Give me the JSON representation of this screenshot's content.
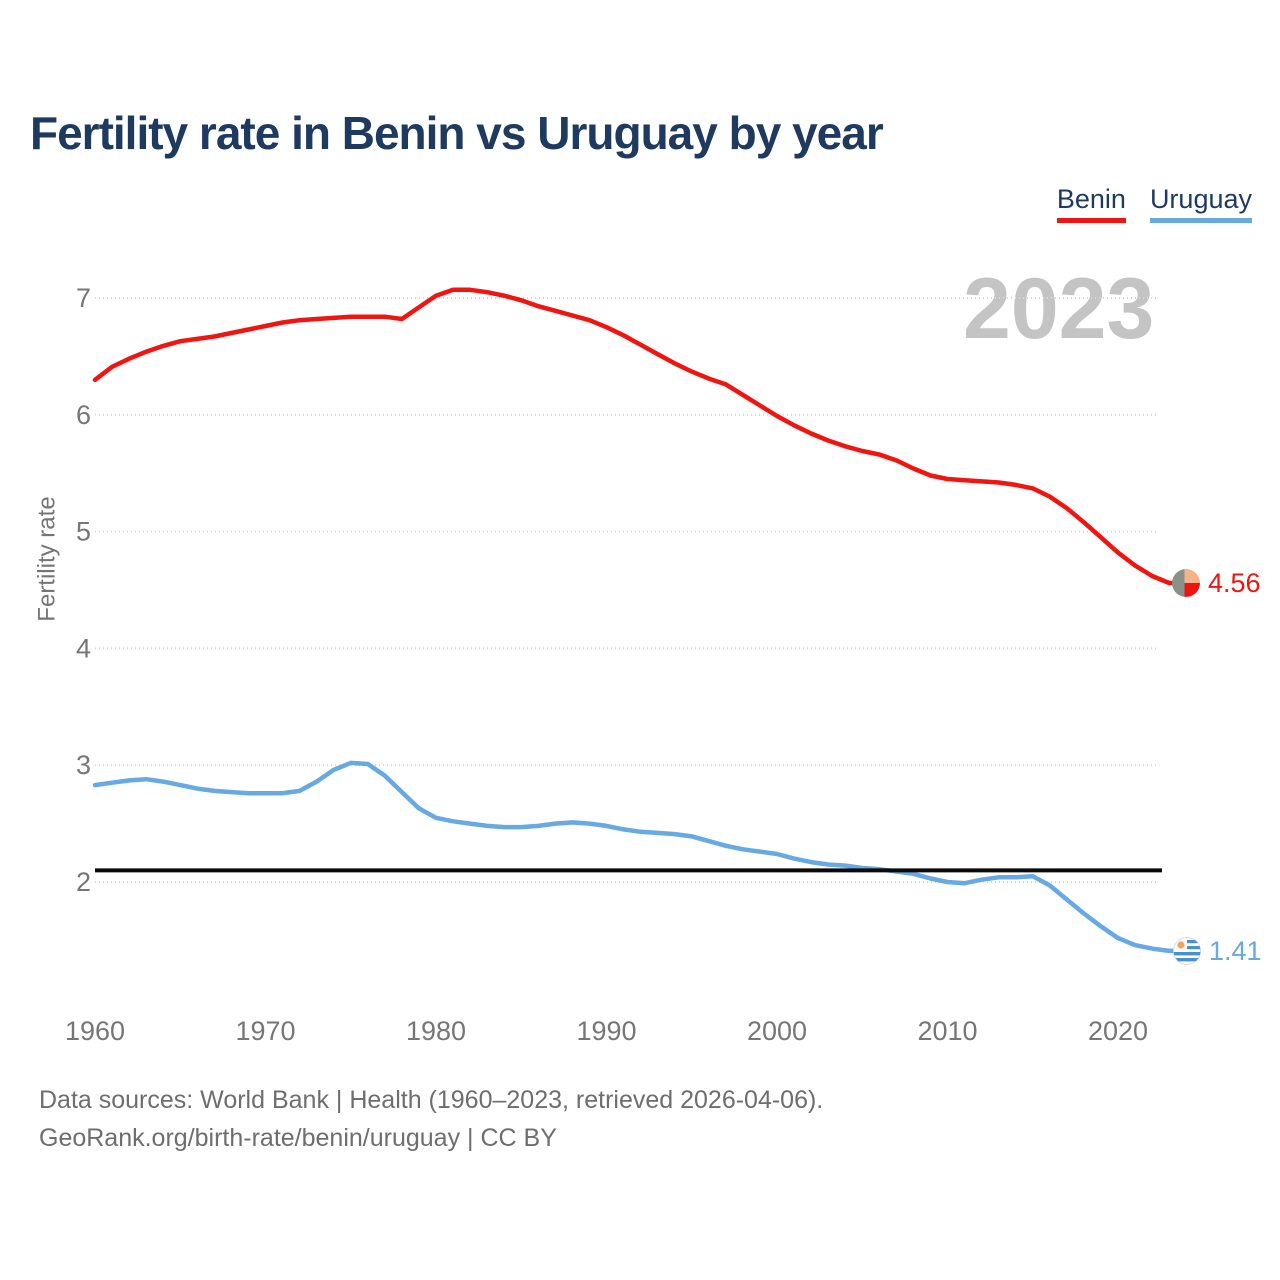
{
  "title": "Fertility rate in Benin vs Uruguay by year",
  "watermark_year": "2023",
  "legend": {
    "items": [
      {
        "label": "Benin",
        "color": "#f01511"
      },
      {
        "label": "Uruguay",
        "color": "#66a9e3"
      }
    ]
  },
  "end_labels": [
    {
      "series": "Benin",
      "value": "4.56",
      "icon": "benin-flag-icon",
      "color": "#f01511"
    },
    {
      "series": "Uruguay",
      "value": "1.41",
      "icon": "uruguay-flag-icon",
      "color": "#66a9e3"
    }
  ],
  "footer": {
    "line1": "Data sources: World Bank | Health (1960–2023, retrieved 2026-04-06).",
    "line2": "GeoRank.org/birth-rate/benin/uruguay | CC BY"
  },
  "chart_data": {
    "type": "line",
    "title": "Fertility rate in Benin vs Uruguay by year",
    "xlabel": "",
    "ylabel": "Fertility rate",
    "x_ticks": [
      1960,
      1970,
      1980,
      1990,
      2000,
      2010,
      2020
    ],
    "y_ticks": [
      2,
      3,
      4,
      5,
      6,
      7
    ],
    "xlim": [
      1960,
      2023
    ],
    "ylim": [
      1.3,
      7.15
    ],
    "grid": "horizontal-dotted",
    "legend_position": "top-right",
    "reference_line": {
      "value": 2.1,
      "color": "#0a0a0a",
      "meaning": "replacement level"
    },
    "x": [
      1960,
      1961,
      1962,
      1963,
      1964,
      1965,
      1966,
      1967,
      1968,
      1969,
      1970,
      1971,
      1972,
      1973,
      1974,
      1975,
      1976,
      1977,
      1978,
      1979,
      1980,
      1981,
      1982,
      1983,
      1984,
      1985,
      1986,
      1987,
      1988,
      1989,
      1990,
      1991,
      1992,
      1993,
      1994,
      1995,
      1996,
      1997,
      1998,
      1999,
      2000,
      2001,
      2002,
      2003,
      2004,
      2005,
      2006,
      2007,
      2008,
      2009,
      2010,
      2011,
      2012,
      2013,
      2014,
      2015,
      2016,
      2017,
      2018,
      2019,
      2020,
      2021,
      2022,
      2023
    ],
    "series": [
      {
        "name": "Benin",
        "color": "#f01511",
        "end_value": 4.56,
        "values": [
          6.3,
          6.41,
          6.48,
          6.54,
          6.59,
          6.63,
          6.65,
          6.67,
          6.7,
          6.73,
          6.76,
          6.79,
          6.81,
          6.82,
          6.83,
          6.84,
          6.84,
          6.84,
          6.82,
          6.92,
          7.02,
          7.07,
          7.07,
          7.05,
          7.02,
          6.98,
          6.93,
          6.89,
          6.85,
          6.81,
          6.75,
          6.68,
          6.6,
          6.52,
          6.44,
          6.37,
          6.31,
          6.26,
          6.17,
          6.08,
          5.99,
          5.91,
          5.84,
          5.78,
          5.73,
          5.69,
          5.66,
          5.61,
          5.54,
          5.48,
          5.45,
          5.44,
          5.43,
          5.42,
          5.4,
          5.37,
          5.3,
          5.2,
          5.08,
          4.95,
          4.82,
          4.71,
          4.62,
          4.56
        ]
      },
      {
        "name": "Uruguay",
        "color": "#66a9e3",
        "end_value": 1.41,
        "values": [
          2.83,
          2.85,
          2.87,
          2.88,
          2.86,
          2.83,
          2.8,
          2.78,
          2.77,
          2.76,
          2.76,
          2.76,
          2.78,
          2.86,
          2.96,
          3.02,
          3.01,
          2.91,
          2.77,
          2.63,
          2.55,
          2.52,
          2.5,
          2.48,
          2.47,
          2.47,
          2.48,
          2.5,
          2.51,
          2.5,
          2.48,
          2.45,
          2.43,
          2.42,
          2.41,
          2.39,
          2.35,
          2.31,
          2.28,
          2.26,
          2.24,
          2.2,
          2.17,
          2.15,
          2.14,
          2.12,
          2.11,
          2.09,
          2.07,
          2.03,
          2.0,
          1.99,
          2.02,
          2.04,
          2.04,
          2.05,
          1.97,
          1.85,
          1.73,
          1.62,
          1.52,
          1.46,
          1.43,
          1.41
        ]
      }
    ]
  }
}
